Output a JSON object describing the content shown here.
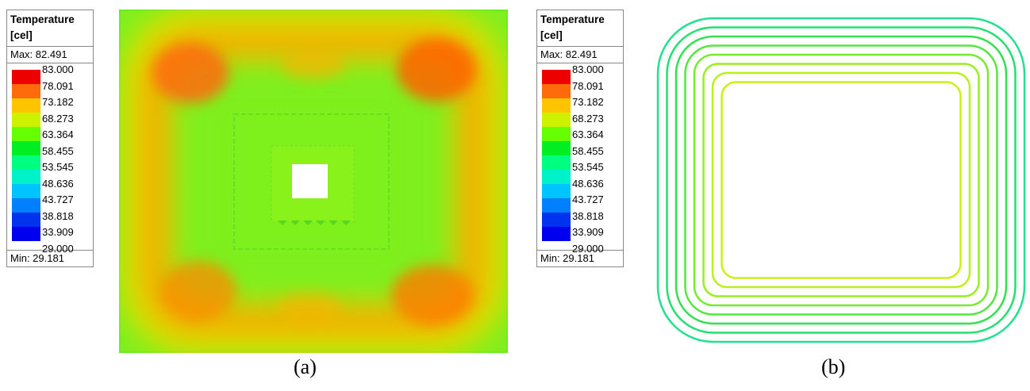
{
  "legend": {
    "title_line1": "Temperature",
    "title_line2": "[cel]",
    "max_label": "Max: 82.491",
    "min_label": "Min: 29.181",
    "ticks": [
      "83.000",
      "78.091",
      "73.182",
      "68.273",
      "63.364",
      "58.455",
      "53.545",
      "48.636",
      "43.727",
      "38.818",
      "33.909",
      "29.000"
    ],
    "colors": [
      "#ee0000",
      "#ff6a0a",
      "#ffc400",
      "#ccf200",
      "#66ff00",
      "#00ee22",
      "#00ff80",
      "#00f2c8",
      "#00c4ff",
      "#0080ff",
      "#0033ee",
      "#0000ee"
    ]
  },
  "captions": {
    "a": "(a)",
    "b": "(b)"
  }
}
